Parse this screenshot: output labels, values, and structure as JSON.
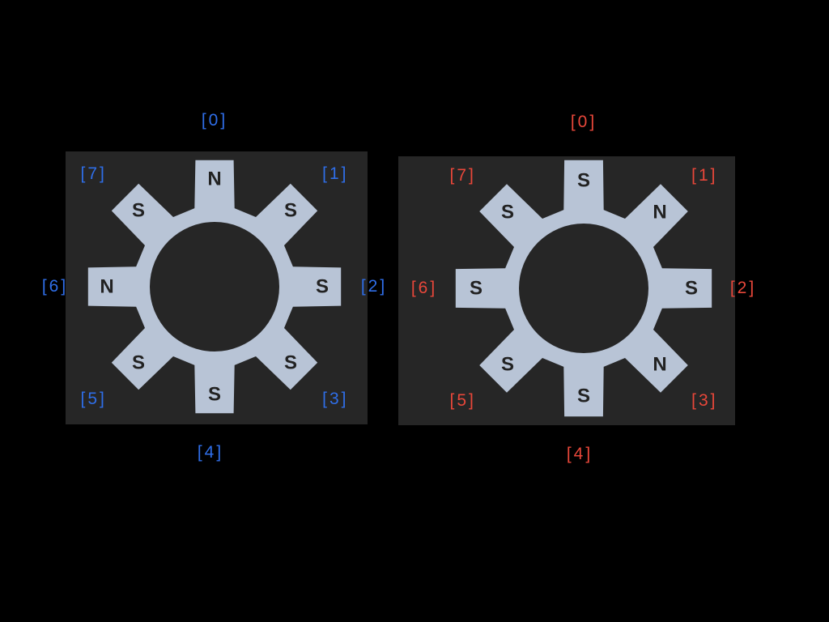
{
  "colors": {
    "background": "#000000",
    "panel": "#262626",
    "gear_fill": "#b8c4d6",
    "hole": "#262626",
    "pole_text": "#222222"
  },
  "magnets": [
    {
      "name": "magnet-left",
      "label_color": "#2f6ee8",
      "index_labels": [
        "[0]",
        "[1]",
        "[2]",
        "[3]",
        "[4]",
        "[5]",
        "[6]",
        "[7]"
      ],
      "poles": [
        "N",
        "S",
        "S",
        "S",
        "S",
        "S",
        "N",
        "S"
      ]
    },
    {
      "name": "magnet-right",
      "label_color": "#e8473a",
      "index_labels": [
        "[0]",
        "[1]",
        "[2]",
        "[3]",
        "[4]",
        "[5]",
        "[6]",
        "[7]"
      ],
      "poles": [
        "S",
        "N",
        "S",
        "N",
        "S",
        "S",
        "S",
        "S"
      ]
    }
  ]
}
